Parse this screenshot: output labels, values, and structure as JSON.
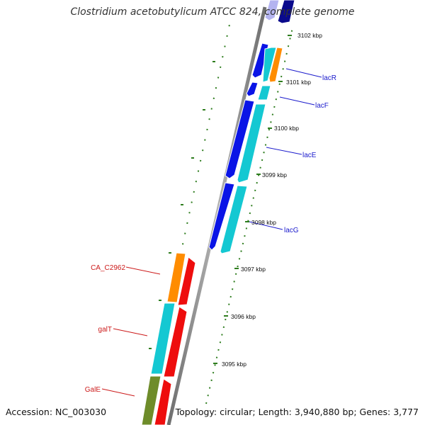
{
  "title": "Clostridium acetobutylicum ATCC 824, complete genome",
  "footer": {
    "accession": "Accession: NC_003030",
    "topology": "Topology: circular; Length: 3,940,880 bp; Genes: 3,777"
  },
  "ticks": [
    "3102 kbp",
    "3101 kbp",
    "3100 kbp",
    "3099 kbp",
    "3098 kbp",
    "3097 kbp",
    "3096 kbp",
    "3095 kbp"
  ],
  "gene_labels": [
    "lacR",
    "lacF",
    "lacE",
    "lacG",
    "CA_C2962",
    "galT",
    "GalE"
  ],
  "colors": {
    "blue": "#0a14e6",
    "cyan": "#14c8d2",
    "orange": "#ff8c00",
    "red": "#ee0d0d",
    "olive": "#6e8c2a",
    "navy": "#0a0a8c",
    "backbone": "#8c8c8c",
    "green": "#2e7d1e",
    "label_blue": "#1a1acc",
    "label_red": "#cc1a1a"
  }
}
